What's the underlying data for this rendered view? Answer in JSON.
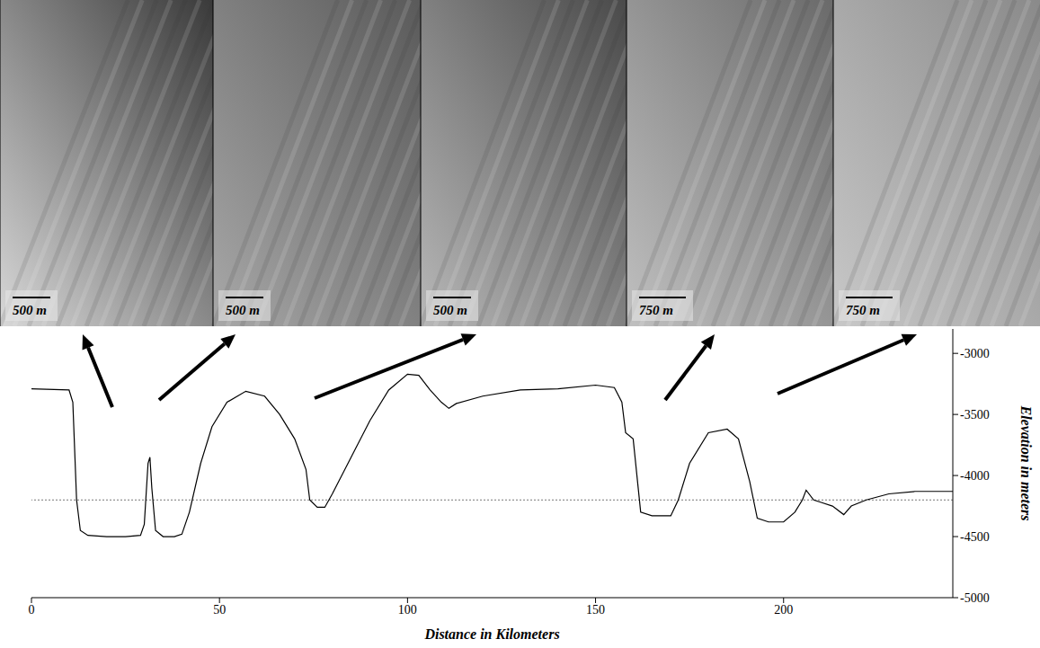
{
  "images": [
    {
      "scale_label": "500 m"
    },
    {
      "scale_label": "500 m"
    },
    {
      "scale_label": "500 m"
    },
    {
      "scale_label": "750 m"
    },
    {
      "scale_label": "750 m"
    }
  ],
  "chart_data": {
    "type": "line",
    "x_label": "Distance in Kilometers",
    "y_label": "Elevation in meters",
    "x": [
      0,
      10,
      11,
      12,
      13,
      15,
      20,
      25,
      29,
      30,
      31,
      31.5,
      32,
      33,
      35,
      38,
      40,
      42,
      45,
      48,
      52,
      57,
      62,
      66,
      70,
      73,
      74,
      76,
      78,
      80,
      85,
      90,
      95,
      100,
      103,
      106,
      109,
      111,
      113,
      120,
      130,
      140,
      150,
      155,
      157,
      158,
      160,
      161,
      162,
      165,
      170,
      172,
      175,
      180,
      185,
      188,
      191,
      193,
      196,
      200,
      203,
      205,
      206,
      208,
      210,
      213,
      216,
      218,
      222,
      228,
      235,
      245
    ],
    "values": [
      -3290,
      -3300,
      -3400,
      -4200,
      -4450,
      -4490,
      -4500,
      -4500,
      -4490,
      -4400,
      -3900,
      -3850,
      -4100,
      -4450,
      -4500,
      -4500,
      -4480,
      -4300,
      -3900,
      -3600,
      -3400,
      -3310,
      -3350,
      -3500,
      -3700,
      -3950,
      -4200,
      -4260,
      -4260,
      -4150,
      -3850,
      -3550,
      -3300,
      -3170,
      -3180,
      -3300,
      -3400,
      -3450,
      -3410,
      -3350,
      -3300,
      -3290,
      -3260,
      -3280,
      -3400,
      -3650,
      -3700,
      -4000,
      -4300,
      -4330,
      -4330,
      -4200,
      -3900,
      -3650,
      -3620,
      -3700,
      -4050,
      -4350,
      -4380,
      -4380,
      -4300,
      -4200,
      -4120,
      -4200,
      -4220,
      -4250,
      -4320,
      -4250,
      -4200,
      -4150,
      -4130,
      -4130
    ],
    "color": "#000000",
    "reference_line": -4200,
    "xlim": [
      0,
      245
    ],
    "xticks": [
      0,
      50,
      100,
      150,
      200
    ],
    "ylim": [
      -5000,
      -2800
    ],
    "yticks": [
      -3000,
      -3500,
      -4000,
      -4500,
      -5000
    ],
    "grid": false
  }
}
